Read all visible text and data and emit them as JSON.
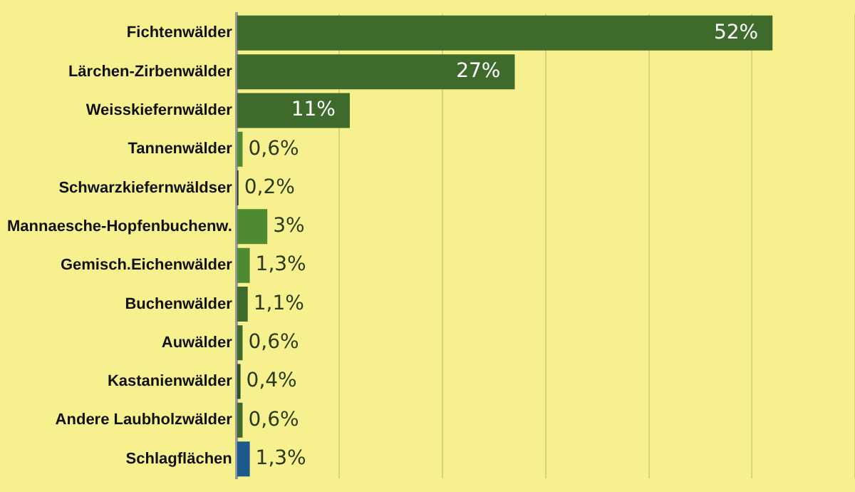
{
  "chart_data": {
    "type": "bar",
    "orientation": "horizontal",
    "categories": [
      "Fichtenwälder",
      "Lärchen-Zirbenwälder",
      "Weisskiefernwälder",
      "Tannenwälder",
      "Schwarzkiefernwäldser",
      "Mannaesche-Hopfenbuchenw.",
      "Gemisch.Eichenwälder",
      "Buchenwälder",
      "Auwälder",
      "Kastanienwälder",
      "Andere Laubholzwälder",
      "Schlagflächen"
    ],
    "values": [
      52,
      27,
      11,
      0.6,
      0.2,
      3,
      1.3,
      1.1,
      0.6,
      0.4,
      0.6,
      1.3
    ],
    "value_labels": [
      "52%",
      "27%",
      "11%",
      "0,6%",
      "0,2%",
      "3%",
      "1,3%",
      "1,1%",
      "0,6%",
      "0,4%",
      "0,6%",
      "1,3%"
    ],
    "colors": [
      "#3e6b2b",
      "#3e6b2b",
      "#3e6b2b",
      "#4f8a32",
      "#1f3a1a",
      "#4f8a32",
      "#4f8a32",
      "#3e6b2b",
      "#3e6b2b",
      "#2f5224",
      "#3e6b2b",
      "#1d5a8c"
    ],
    "xlim": [
      0,
      60
    ],
    "xticks": [
      {
        "value": 0,
        "label": null
      },
      {
        "value": 10,
        "label": null
      },
      {
        "value": 20,
        "label": null
      },
      {
        "value": 30,
        "label": null
      },
      {
        "value": 40,
        "label": null
      },
      {
        "value": 50,
        "label": null
      },
      {
        "value": 60,
        "label": null
      }
    ],
    "grid": "x",
    "legend": false,
    "tick_labels": "y"
  }
}
